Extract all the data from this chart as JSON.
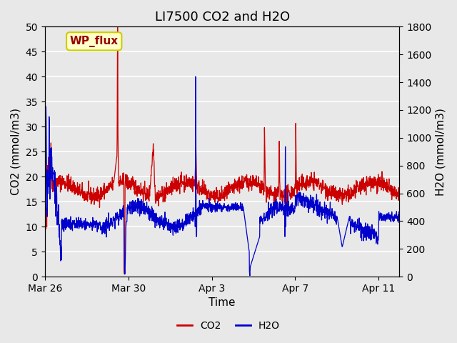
{
  "title": "LI7500 CO2 and H2O",
  "xlabel": "Time",
  "ylabel_left": "CO2 (mmol/m3)",
  "ylabel_right": "H2O (mmol/m3)",
  "xlim_days": [
    0,
    17
  ],
  "ylim_left": [
    0,
    50
  ],
  "ylim_right": [
    0,
    1800
  ],
  "x_ticks_positions": [
    0,
    4,
    8,
    12,
    16
  ],
  "x_ticks_labels": [
    "Mar 26",
    "Mar 30",
    "Apr 3",
    "Apr 7",
    "Apr 11"
  ],
  "y_ticks_left": [
    0,
    5,
    10,
    15,
    20,
    25,
    30,
    35,
    40,
    45,
    50
  ],
  "y_ticks_right": [
    0,
    200,
    400,
    600,
    800,
    1000,
    1200,
    1400,
    1600,
    1800
  ],
  "background_color": "#e8e8e8",
  "plot_bg_color": "#e8e8e8",
  "co2_color": "#cc0000",
  "h2o_color": "#0000cc",
  "legend_label_co2": "CO2",
  "legend_label_h2o": "H2O",
  "annotation_text": "WP_flux",
  "annotation_box_color": "#ffffcc",
  "annotation_box_edge": "#cccc00",
  "title_fontsize": 13,
  "axis_label_fontsize": 11,
  "tick_fontsize": 10,
  "legend_fontsize": 10
}
